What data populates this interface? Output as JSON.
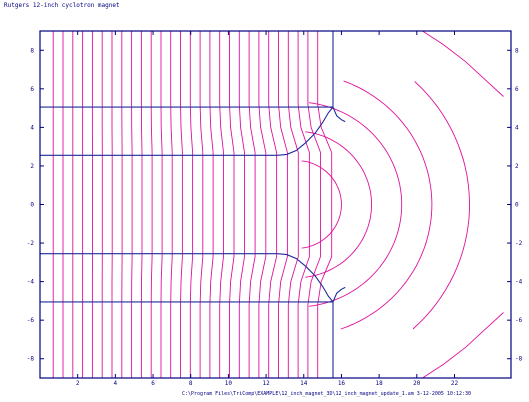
{
  "title": "Rutgers 12-inch cyclotron magnet",
  "footer": "C:\\Program Files\\TriComp\\EXAMPLE\\12_inch_magnet_3D\\12_inch_magnet_update_1.am   3-12-2005  10:12:30",
  "axes": {
    "x_range": [
      0,
      25
    ],
    "y_range": [
      -9,
      9
    ],
    "x_ticks": [
      "2",
      "4",
      "6",
      "8",
      "10",
      "12",
      "14",
      "16",
      "18",
      "20",
      "22"
    ],
    "y_ticks_left": [
      "8",
      "6",
      "4",
      "2",
      "0",
      "-2",
      "-4",
      "-6",
      "-8"
    ],
    "y_ticks_right": [
      "8",
      "6",
      "4",
      "2",
      "0",
      "-2",
      "-4",
      "-6",
      "-8"
    ]
  },
  "colors": {
    "frame": "#000080",
    "boundary": "#1f2a9a",
    "field_lines": "#e0119c"
  }
}
